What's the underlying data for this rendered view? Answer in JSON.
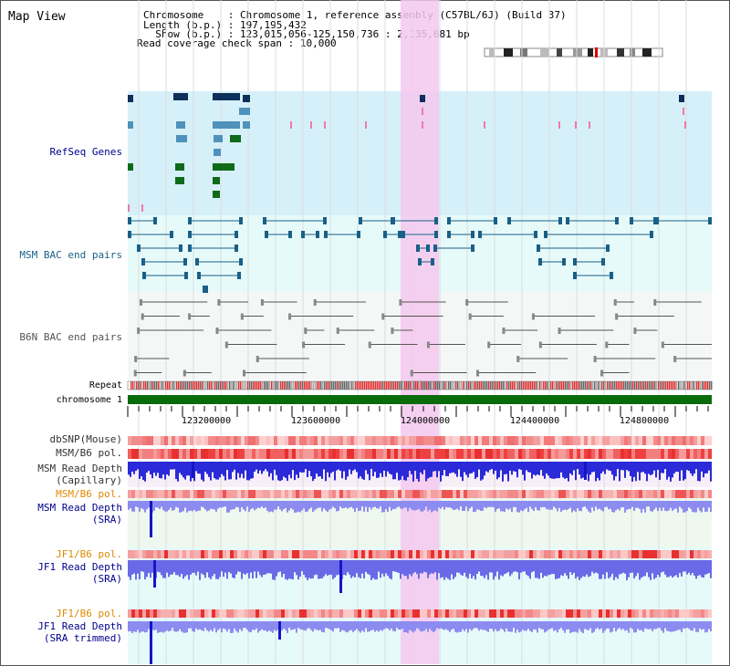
{
  "page": {
    "title": "Map View"
  },
  "header": {
    "rows": [
      {
        "key": "Chromosome    ",
        "value": "Chromosome 1, reference assembly (C57BL/6J) (Build 37)"
      },
      {
        "key": "Length (b.p.) ",
        "value": "197,195,432"
      },
      {
        "key": "  Show (b.p.) ",
        "value": "123,015,056-125,150,736 : 2,135,681 bp"
      },
      {
        "key": "Read coverage check span ",
        "value": "10,000"
      }
    ]
  },
  "tracks": {
    "refseq": "RefSeq Genes",
    "msm_bac": "MSM BAC end pairs",
    "b6n_bac": "B6N BAC end pairs",
    "repeat": "Repeat",
    "chromosome": "chromosome 1",
    "dbsnp": "dbSNP(Mouse)",
    "msm_b6_pol_1": "MSM/B6 pol.",
    "msm_depth_cap_1": "MSM Read Depth",
    "msm_depth_cap_2": "(Capillary)",
    "msm_b6_pol_2": "MSM/B6 pol.",
    "msm_depth_sra_1": "MSM Read Depth",
    "msm_depth_sra_2": "(SRA)",
    "jf1_b6_pol_1": "JF1/B6 pol.",
    "jf1_depth_sra_1": "JF1 Read Depth",
    "jf1_depth_sra_2": "(SRA)",
    "jf1_b6_pol_2": "JF1/B6 pol.",
    "jf1_depth_trim_1": "JF1 Read Depth",
    "jf1_depth_trim_2": "(SRA trimmed)"
  },
  "axis": {
    "ticks": [
      "123200000",
      "123600000",
      "124000000",
      "124400000",
      "124800000"
    ]
  },
  "colors": {
    "refseq_bg": "#d6f0fa",
    "bac_bg": "#e6fafa",
    "b6n_bg": "#f5f7f7",
    "highlight": "#f5c8ee",
    "gene_navy": "#0d2f5a",
    "gene_blue": "#4e92bb",
    "gene_green": "#0e6b1a",
    "bac_line": "#1a5f86",
    "b6n_line": "#555555",
    "chromosome": "#0a6b0a",
    "depth_blue": "#2a2ad8",
    "depth_light": "#8c8cf0",
    "label_blue": "#00008b",
    "label_orange": "#e08a00"
  }
}
